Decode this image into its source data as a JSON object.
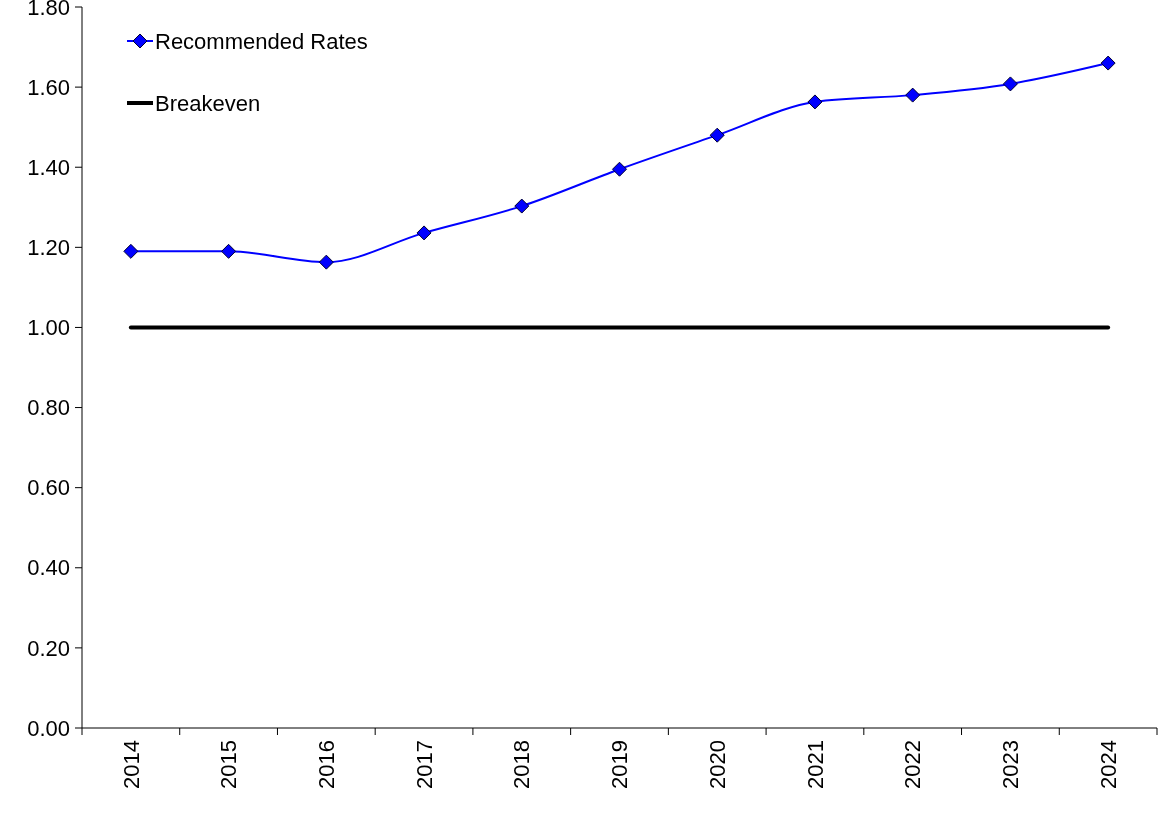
{
  "chart_data": {
    "type": "line",
    "categories": [
      "2014",
      "2015",
      "2016",
      "2017",
      "2018",
      "2019",
      "2020",
      "2021",
      "2022",
      "2023",
      "2024"
    ],
    "series": [
      {
        "name": "Recommended Rates",
        "color": "#0000ff",
        "marker": "diamond",
        "values": [
          1.19,
          1.19,
          1.163,
          1.236,
          1.303,
          1.395,
          1.48,
          1.563,
          1.58,
          1.608,
          1.66
        ]
      },
      {
        "name": "Breakeven",
        "color": "#000000",
        "marker": "none",
        "values": [
          1,
          1,
          1,
          1,
          1,
          1,
          1,
          1,
          1,
          1,
          1
        ]
      }
    ],
    "ylim": [
      0,
      1.8
    ],
    "yticks": [
      {
        "value": 0,
        "label": "0.00"
      },
      {
        "value": 0.2,
        "label": "0.20"
      },
      {
        "value": 0.4,
        "label": "0.40"
      },
      {
        "value": 0.6,
        "label": "0.60"
      },
      {
        "value": 0.8,
        "label": "0.80"
      },
      {
        "value": 1,
        "label": "1.00"
      },
      {
        "value": 1.2,
        "label": "1.20"
      },
      {
        "value": 1.4,
        "label": "1.40"
      },
      {
        "value": 1.6,
        "label": "1.60"
      },
      {
        "value": 1.8,
        "label": "1.80"
      }
    ],
    "grid": false,
    "legend": "top left"
  }
}
